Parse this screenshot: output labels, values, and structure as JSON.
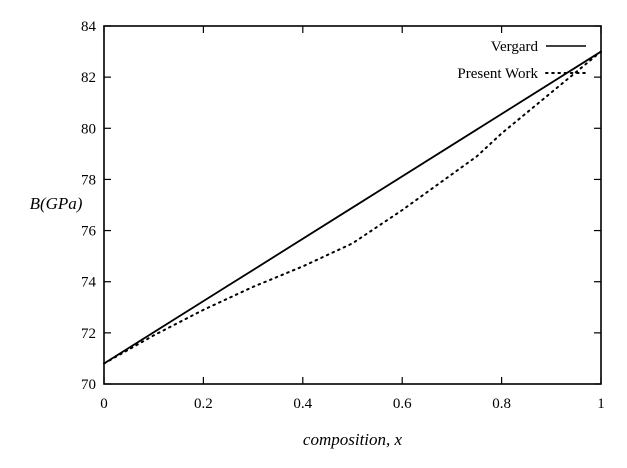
{
  "chart_data": {
    "type": "line",
    "title": "",
    "xlabel": "composition, x",
    "ylabel": "B(GPa)",
    "xlim": [
      0,
      1
    ],
    "ylim": [
      70,
      84
    ],
    "xticks": [
      0,
      0.2,
      0.4,
      0.6,
      0.8,
      1
    ],
    "xtick_labels": [
      "0",
      "0.2",
      "0.4",
      "0.6",
      "0.8",
      "1"
    ],
    "yticks": [
      70,
      72,
      74,
      76,
      78,
      80,
      82,
      84
    ],
    "ytick_labels": [
      "70",
      "72",
      "74",
      "76",
      "78",
      "80",
      "82",
      "84"
    ],
    "legend_position": "top-right",
    "grid": false,
    "series": [
      {
        "name": "Vergard",
        "style": "solid",
        "color": "#000000",
        "x": [
          0,
          0.25,
          0.5,
          0.75,
          1.0
        ],
        "y": [
          70.8,
          73.85,
          76.9,
          79.95,
          83.0
        ]
      },
      {
        "name": "Present Work",
        "style": "dotted",
        "color": "#000000",
        "x": [
          0,
          0.1,
          0.2,
          0.3,
          0.4,
          0.5,
          0.6,
          0.7,
          0.75,
          0.8,
          0.9,
          1.0
        ],
        "y": [
          70.8,
          71.9,
          72.9,
          73.8,
          74.6,
          75.5,
          76.8,
          78.2,
          78.9,
          79.8,
          81.4,
          83.0
        ]
      }
    ]
  }
}
